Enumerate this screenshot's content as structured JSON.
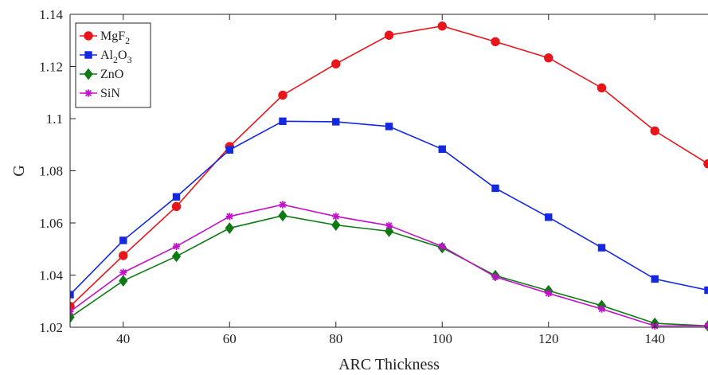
{
  "chart_data": {
    "type": "line",
    "xlabel": "ARC Thickness",
    "ylabel": "G",
    "xlim": [
      30,
      150
    ],
    "ylim": [
      1.02,
      1.14
    ],
    "x_ticks": [
      40,
      60,
      80,
      100,
      120,
      140
    ],
    "y_ticks": [
      1.02,
      1.04,
      1.06,
      1.08,
      1.1,
      1.12,
      1.14
    ],
    "x_tick_labels": [
      "40",
      "60",
      "80",
      "100",
      "120",
      "140"
    ],
    "y_tick_labels": [
      "1.02",
      "1.04",
      "1.06",
      "1.08",
      "1.1",
      "1.12",
      "1.14"
    ],
    "grid": false,
    "legend_position": "top-left",
    "x": [
      30,
      40,
      50,
      60,
      70,
      80,
      90,
      100,
      110,
      120,
      130,
      140,
      150
    ],
    "series": [
      {
        "name": "MgF2",
        "legend_base": "MgF",
        "legend_parts": [
          {
            "t": "MgF",
            "sub": false
          },
          {
            "t": "2",
            "sub": true
          }
        ],
        "color": "#e8151b",
        "marker": "circle",
        "values": [
          1.028,
          1.0475,
          1.0663,
          1.0893,
          1.109,
          1.121,
          1.132,
          1.1355,
          1.1295,
          1.1233,
          1.1118,
          1.0953,
          1.0827
        ]
      },
      {
        "name": "Al2O3",
        "legend_parts": [
          {
            "t": "Al",
            "sub": false
          },
          {
            "t": "2",
            "sub": true
          },
          {
            "t": "O",
            "sub": false
          },
          {
            "t": "3",
            "sub": true
          }
        ],
        "color": "#1428e0",
        "marker": "square",
        "values": [
          1.0325,
          1.0533,
          1.07,
          1.088,
          1.099,
          1.0988,
          1.097,
          1.0883,
          1.0733,
          1.0622,
          1.0505,
          1.0385,
          1.0342
        ]
      },
      {
        "name": "ZnO",
        "legend_parts": [
          {
            "t": "ZnO",
            "sub": false
          }
        ],
        "color": "#0d7a12",
        "marker": "diamond",
        "values": [
          1.0238,
          1.0378,
          1.0472,
          1.058,
          1.0628,
          1.0592,
          1.0568,
          1.0505,
          1.0398,
          1.034,
          1.0283,
          1.0215,
          1.0205
        ]
      },
      {
        "name": "SiN",
        "legend_parts": [
          {
            "t": "SiN",
            "sub": false
          }
        ],
        "color": "#c012c8",
        "marker": "star",
        "values": [
          1.026,
          1.041,
          1.051,
          1.0625,
          1.067,
          1.0625,
          1.059,
          1.051,
          1.0393,
          1.033,
          1.027,
          1.0205,
          1.0205
        ]
      }
    ]
  }
}
